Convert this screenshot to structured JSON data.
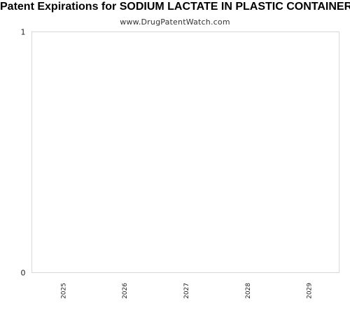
{
  "chart_data": {
    "type": "bar",
    "title": "Patent Expirations for SODIUM LACTATE IN PLASTIC CONTAINER",
    "subtitle": "www.DrugPatentWatch.com",
    "categories": [
      "2025",
      "2026",
      "2027",
      "2028",
      "2029"
    ],
    "values": [
      0,
      0,
      0,
      0,
      0
    ],
    "ylim": [
      0,
      1
    ],
    "y_ticks": [
      "0",
      "1"
    ],
    "xlabel": "",
    "ylabel": "",
    "grid": false,
    "colors": {
      "plot_border": "#d9d9d9",
      "text": "#222222"
    }
  }
}
